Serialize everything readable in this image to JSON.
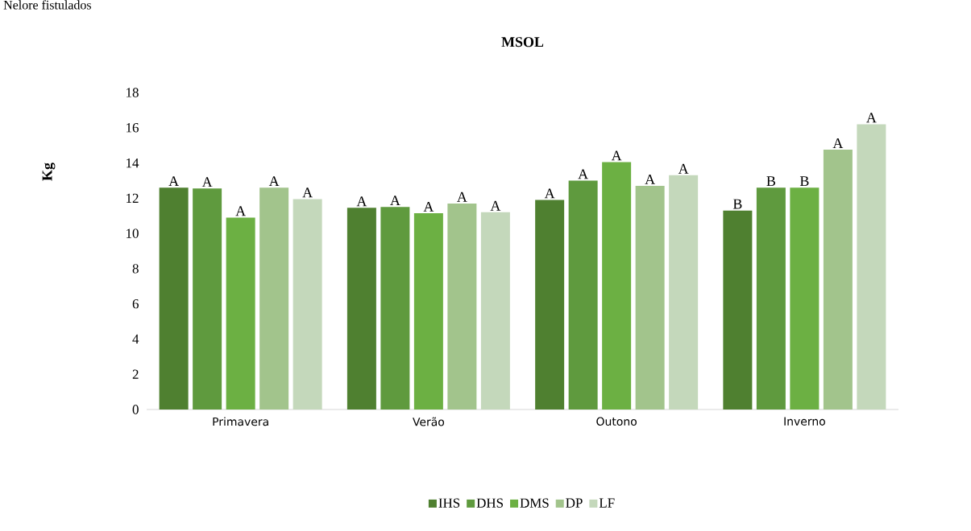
{
  "chart_data": {
    "type": "bar",
    "title": "MSOL",
    "ylabel": "Kg",
    "annotations": [
      "Nelore fistulados"
    ],
    "categories": [
      "Primavera",
      "Verão",
      "Outono",
      "Inverno"
    ],
    "series": [
      {
        "name": "IHS",
        "color": "#4f8030",
        "values": [
          12.6,
          11.45,
          11.9,
          11.3
        ],
        "value_labels": [
          "A",
          "A",
          "A",
          "B"
        ]
      },
      {
        "name": "DHS",
        "color": "#5f9a3e",
        "values": [
          12.55,
          11.5,
          13.0,
          12.6
        ],
        "value_labels": [
          "A",
          "A",
          "A",
          "B"
        ]
      },
      {
        "name": "DMS",
        "color": "#6cb043",
        "values": [
          10.9,
          11.15,
          14.05,
          12.6
        ],
        "value_labels": [
          "A",
          "A",
          "A",
          "B"
        ]
      },
      {
        "name": "DP",
        "color": "#a2c48c",
        "values": [
          12.6,
          11.7,
          12.7,
          14.75
        ],
        "value_labels": [
          "A",
          "A",
          "A",
          "A"
        ]
      },
      {
        "name": "LF",
        "color": "#c4d8bb",
        "values": [
          11.95,
          11.2,
          13.3,
          16.2
        ],
        "value_labels": [
          "A",
          "A",
          "A",
          "A"
        ]
      }
    ],
    "ylim": [
      0,
      18
    ],
    "yticks": [
      0,
      2,
      4,
      6,
      8,
      10,
      12,
      14,
      16,
      18
    ],
    "grid": false,
    "legend": "bottom"
  }
}
